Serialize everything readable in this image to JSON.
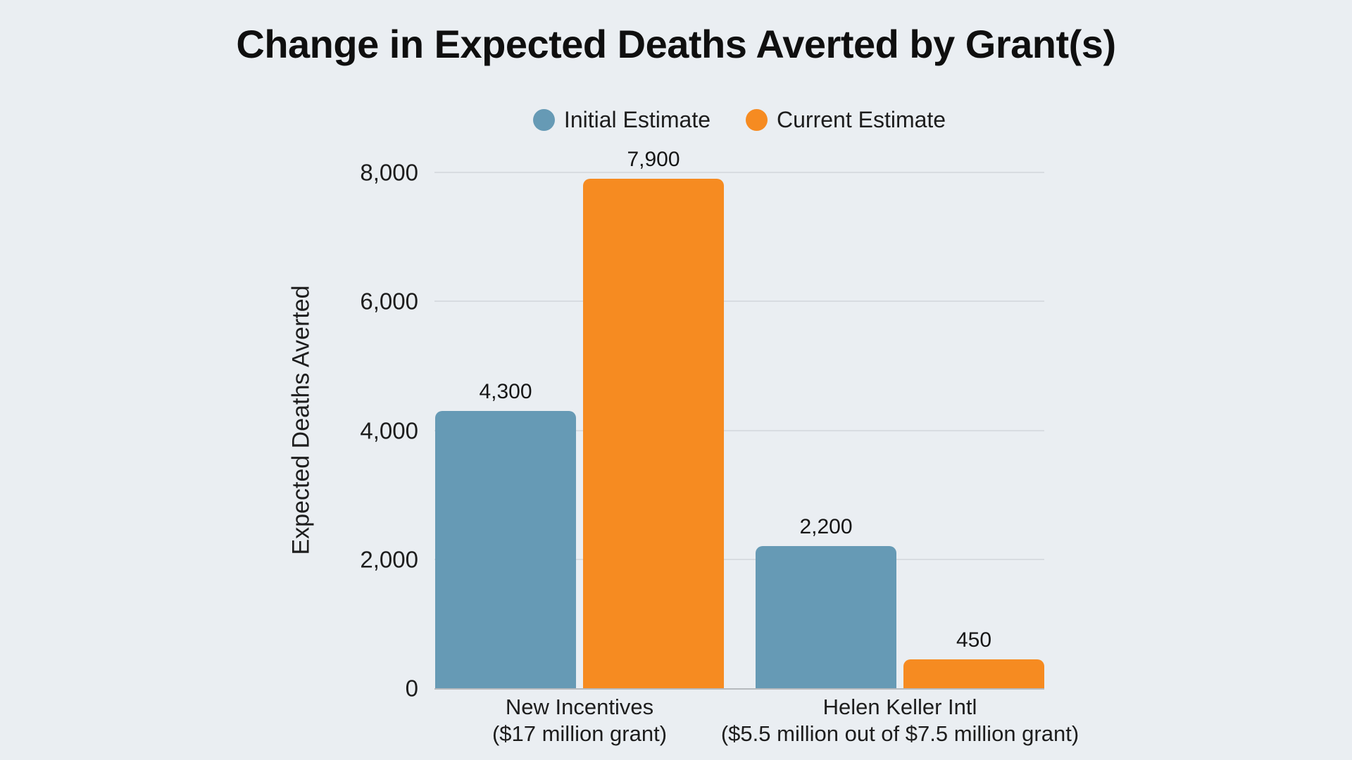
{
  "chart_data": {
    "type": "bar",
    "title": "Change in Expected Deaths Averted by Grant(s)",
    "ylabel": "Expected Deaths Averted",
    "xlabel": "",
    "ylim": [
      0,
      8000
    ],
    "grid": "horizontal",
    "legend_position": "top-center",
    "bar_label_position": "above",
    "yticks": [
      {
        "value": 0,
        "label": "0"
      },
      {
        "value": 2000,
        "label": "2,000"
      },
      {
        "value": 4000,
        "label": "4,000"
      },
      {
        "value": 6000,
        "label": "6,000"
      },
      {
        "value": 8000,
        "label": "8,000"
      }
    ],
    "categories": [
      {
        "line1": "New Incentives",
        "line2": "($17 million grant)"
      },
      {
        "line1": "Helen Keller Intl",
        "line2": "($5.5 million out of $7.5 million grant)"
      }
    ],
    "series": [
      {
        "name": "Initial Estimate",
        "color": "#669ab5",
        "values": [
          4300,
          2200
        ],
        "value_labels": [
          "4,300",
          "2,200"
        ]
      },
      {
        "name": "Current Estimate",
        "color": "#f68b21",
        "values": [
          7900,
          450
        ],
        "value_labels": [
          "7,900",
          "450"
        ]
      }
    ]
  },
  "colors": {
    "background": "#eaeef2",
    "text": "#1d1d1d",
    "gridline": "#d8dce1",
    "baseline": "#b6babe"
  }
}
